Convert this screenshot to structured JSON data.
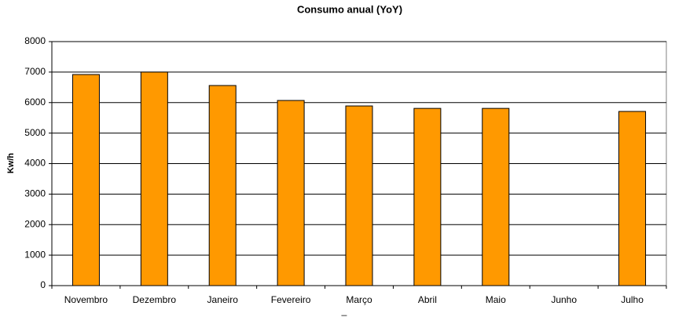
{
  "chart_data": {
    "type": "bar",
    "title": "Consumo anual (YoY)",
    "y_label": "Kw/h",
    "x_label": "_",
    "categories": [
      "Novembro",
      "Dezembro",
      "Janeiro",
      "Fevereiro",
      "Março",
      "Abril",
      "Maio",
      "Junho",
      "Julho"
    ],
    "values": [
      6920,
      7000,
      6560,
      6070,
      5890,
      5810,
      5810,
      null,
      5710
    ],
    "color": "#ff9900",
    "ylim": [
      0,
      8000
    ],
    "yticks": [
      0,
      1000,
      2000,
      3000,
      4000,
      5000,
      6000,
      7000,
      8000
    ],
    "grid": true
  }
}
